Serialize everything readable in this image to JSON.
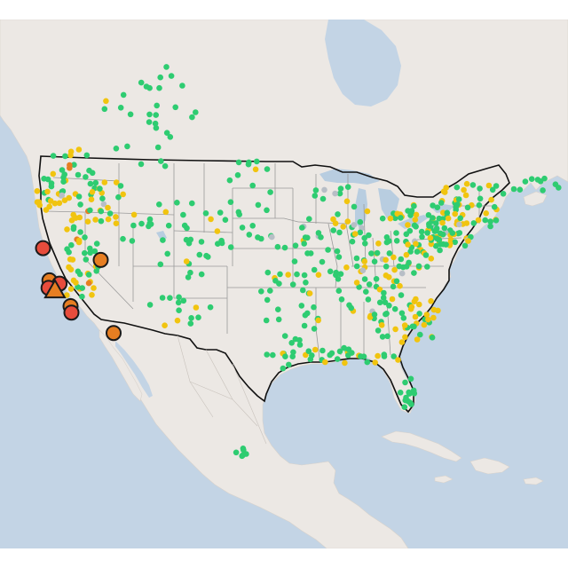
{
  "map": {
    "colors": {
      "ocean": "#c3d4e5",
      "land": "#ece8e4",
      "lake": "#b8cde0",
      "us_border": "#111111",
      "state_lines": "#9a9a9a"
    },
    "category_colors": {
      "good": "#2ecc71",
      "moderate": "#f1c40f",
      "usg": "#e67e22",
      "unhealthy": "#e74c3c",
      "no_data": "#b8bec6"
    },
    "large_markers": [
      {
        "shape": "circle",
        "category": "unhealthy",
        "lat": 40.6,
        "lon": -122.3
      },
      {
        "shape": "circle",
        "category": "usg",
        "lat": 39.5,
        "lon": -116.0
      },
      {
        "shape": "circle",
        "category": "usg",
        "lat": 37.6,
        "lon": -121.6
      },
      {
        "shape": "circle",
        "category": "unhealthy",
        "lat": 37.3,
        "lon": -120.5
      },
      {
        "shape": "circle",
        "category": "unhealthy",
        "lat": 36.9,
        "lon": -121.7
      },
      {
        "shape": "triangle",
        "category": "usg",
        "lat": 36.7,
        "lon": -121.0
      },
      {
        "shape": "circle",
        "category": "usg",
        "lat": 35.2,
        "lon": -119.3
      },
      {
        "shape": "circle",
        "category": "unhealthy",
        "lat": 34.6,
        "lon": -119.2
      },
      {
        "shape": "circle",
        "category": "usg",
        "lat": 32.7,
        "lon": -114.6
      }
    ]
  }
}
